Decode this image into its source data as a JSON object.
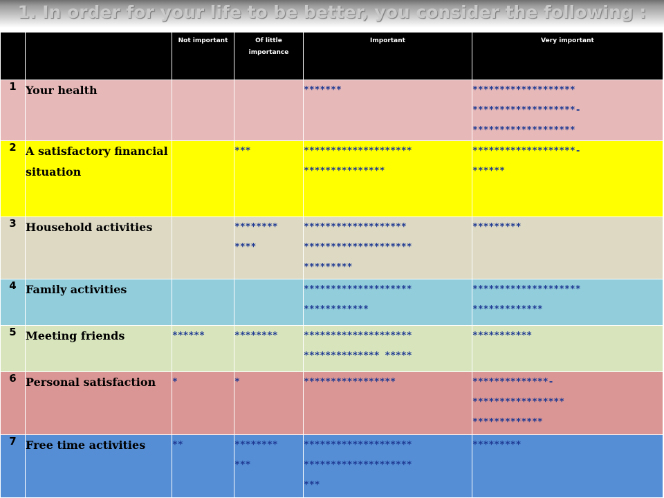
{
  "title": "1. In order for your life to be better, you consider the following :",
  "columns": {
    "not_important": "Not important",
    "little_importance": "Of little importance",
    "important": "Important",
    "very_important": "Very important"
  },
  "rows": [
    {
      "num": "1",
      "label": "Your health",
      "not_important": "",
      "little_importance": "",
      "important": "*******",
      "very_important": "*******************\n*******************-\n*******************"
    },
    {
      "num": "2",
      "label": "A satisfactory financial situation",
      "not_important": "",
      "little_importance": "***",
      "important": "********************\n***************",
      "very_important": "*******************-\n******"
    },
    {
      "num": "3",
      "label": "Household activities",
      "not_important": "",
      "little_importance": "********\n****",
      "important": "*******************\n********************\n*********",
      "very_important": "*********"
    },
    {
      "num": "4",
      "label": "Family activities",
      "not_important": "",
      "little_importance": "",
      "important": "********************\n************",
      "very_important": "********************\n*************"
    },
    {
      "num": "5",
      "label": "Meeting friends",
      "not_important": "******",
      "little_importance": "********",
      "important": "********************\n************** *****",
      "very_important": "***********"
    },
    {
      "num": "6",
      "label": "Personal satisfaction",
      "not_important": "*",
      "little_importance": "*",
      "important": "*****************",
      "very_important": "**************-\n*****************\n*************"
    },
    {
      "num": "7",
      "label": "Free time activities",
      "not_important": "**",
      "little_importance": "********\n***",
      "important": "********************\n********************\n***",
      "very_important": "*********"
    }
  ]
}
